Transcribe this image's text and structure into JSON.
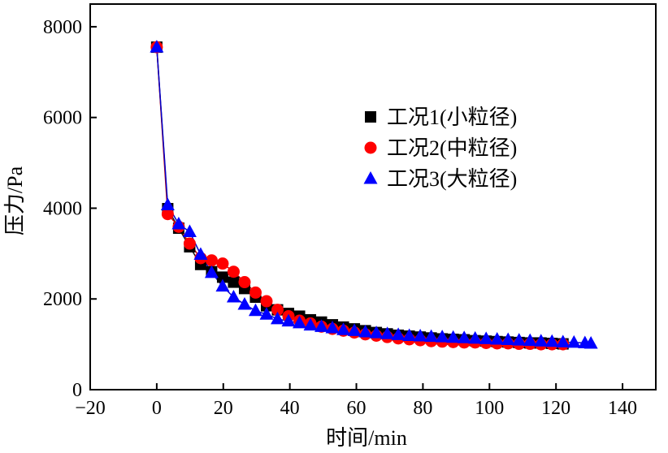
{
  "chart_data": {
    "type": "scatter",
    "title": "",
    "xlabel": "时间/min",
    "ylabel": "压力/Pa",
    "xlim": [
      -20,
      150
    ],
    "ylim": [
      0,
      8500
    ],
    "xticks": [
      -20,
      0,
      20,
      40,
      60,
      80,
      100,
      120,
      140
    ],
    "xtick_labels": [
      "−20",
      "0",
      "20",
      "40",
      "60",
      "80",
      "100",
      "120",
      "140"
    ],
    "yticks": [
      0,
      2000,
      4000,
      6000,
      8000
    ],
    "ytick_labels": [
      "0",
      "2000",
      "4000",
      "6000",
      "8000"
    ],
    "grid": false,
    "legend_position": "center-right",
    "series": [
      {
        "name": "工况1(小粒径)",
        "marker": "square",
        "color": "#000000",
        "line_color": "#1a1a1a",
        "x": [
          0,
          3.3,
          6.6,
          9.9,
          13.2,
          16.5,
          19.8,
          23.1,
          26.4,
          29.7,
          33,
          36.3,
          39.6,
          42.9,
          46.2,
          49.5,
          52.8,
          56.1,
          59.4,
          62.7,
          66,
          69.3,
          72.6,
          75.9,
          79.2,
          82.5,
          85.8,
          89.1,
          92.4,
          95.7,
          99,
          102.3,
          105.6,
          108.9,
          112.2,
          115.5,
          118.8,
          122.1
        ],
        "y": [
          7550,
          3990,
          3560,
          3150,
          2760,
          2600,
          2480,
          2370,
          2230,
          2040,
          1850,
          1760,
          1680,
          1620,
          1540,
          1490,
          1430,
          1380,
          1340,
          1300,
          1260,
          1230,
          1200,
          1180,
          1160,
          1140,
          1120,
          1110,
          1100,
          1080,
          1070,
          1060,
          1050,
          1040,
          1030,
          1030,
          1020,
          1010
        ]
      },
      {
        "name": "工况2(中粒径)",
        "marker": "circle",
        "color": "#ff0000",
        "line_color": "#cc0000",
        "x": [
          0,
          3.3,
          6.6,
          9.9,
          13.2,
          16.5,
          19.8,
          23.1,
          26.4,
          29.7,
          33,
          36.3,
          39.6,
          42.9,
          46.2,
          49.5,
          52.8,
          56.1,
          59.4,
          62.7,
          66,
          69.3,
          72.6,
          75.9,
          79.2,
          82.5,
          85.8,
          89.1,
          92.4,
          95.7,
          99,
          102.3,
          105.6,
          108.9,
          112.2,
          115.5,
          118.8,
          122.1
        ],
        "y": [
          7550,
          3870,
          3590,
          3220,
          2900,
          2850,
          2780,
          2600,
          2370,
          2140,
          1950,
          1760,
          1620,
          1520,
          1460,
          1390,
          1340,
          1300,
          1260,
          1220,
          1190,
          1160,
          1130,
          1110,
          1090,
          1070,
          1060,
          1050,
          1040,
          1040,
          1030,
          1020,
          1020,
          1010,
          1010,
          1000,
          1000,
          1000
        ]
      },
      {
        "name": "工况3(大粒径)",
        "marker": "triangle",
        "color": "#0000ff",
        "line_color": "#0000cc",
        "x": [
          0,
          3.3,
          6.6,
          9.9,
          13.2,
          16.5,
          19.8,
          23.1,
          26.4,
          29.7,
          33,
          36.3,
          39.6,
          42.9,
          46.2,
          49.5,
          52.8,
          56.1,
          59.4,
          62.7,
          66,
          69.3,
          72.6,
          75.9,
          79.2,
          82.5,
          85.8,
          89.1,
          92.4,
          95.7,
          99,
          102.3,
          105.6,
          108.9,
          112.2,
          115.5,
          118.8,
          122.1,
          125.4,
          128.7,
          130.5
        ],
        "y": [
          7550,
          4070,
          3650,
          3480,
          2980,
          2580,
          2280,
          2040,
          1880,
          1740,
          1660,
          1560,
          1510,
          1470,
          1420,
          1390,
          1360,
          1320,
          1300,
          1270,
          1250,
          1230,
          1210,
          1190,
          1180,
          1170,
          1160,
          1150,
          1140,
          1130,
          1120,
          1110,
          1100,
          1090,
          1080,
          1070,
          1060,
          1050,
          1040,
          1030,
          1020
        ]
      }
    ]
  }
}
